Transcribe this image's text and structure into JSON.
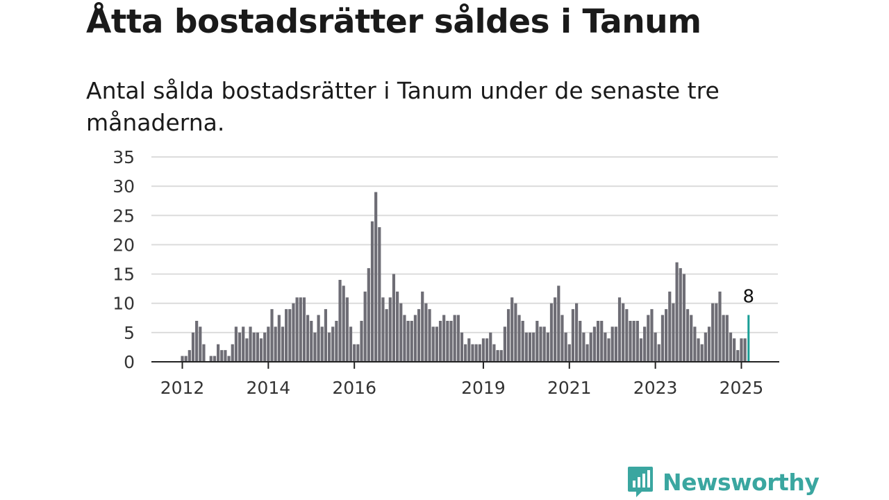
{
  "title": "Åtta bostadsrätter såldes i Tanum",
  "subtitle": "Antal sålda bostadsrätter i Tanum under de senaste tre månaderna.",
  "brand": {
    "name": "Newsworthy",
    "icon": "newsworthy-logo-icon"
  },
  "colors": {
    "bar": "#6e6d75",
    "highlight": "#1a9e96",
    "grid": "#dcdcdc",
    "axis": "#222222",
    "brand": "#3aa6a0"
  },
  "chart_data": {
    "type": "bar",
    "x_start": "2012-01",
    "x_end": "2025-02",
    "x_ticks": [
      "2012",
      "2014",
      "2016",
      "2019",
      "2021",
      "2023",
      "2025"
    ],
    "y_ticks": [
      "0",
      "5",
      "10",
      "15",
      "20",
      "25",
      "30",
      "35"
    ],
    "ylim": [
      0,
      35
    ],
    "grid": true,
    "values": [
      1,
      1,
      2,
      5,
      7,
      6,
      3,
      0,
      1,
      1,
      3,
      2,
      2,
      1,
      3,
      6,
      5,
      6,
      4,
      6,
      5,
      5,
      4,
      5,
      6,
      9,
      6,
      8,
      6,
      9,
      9,
      10,
      11,
      11,
      11,
      8,
      7,
      5,
      8,
      6,
      9,
      5,
      6,
      7,
      14,
      13,
      11,
      6,
      3,
      3,
      7,
      12,
      16,
      24,
      29,
      23,
      11,
      9,
      11,
      15,
      12,
      10,
      8,
      7,
      7,
      8,
      9,
      12,
      10,
      9,
      6,
      6,
      7,
      8,
      7,
      7,
      8,
      8,
      5,
      3,
      4,
      3,
      3,
      3,
      4,
      4,
      5,
      3,
      2,
      2,
      6,
      9,
      11,
      10,
      8,
      7,
      5,
      5,
      5,
      7,
      6,
      6,
      5,
      10,
      11,
      13,
      8,
      5,
      3,
      9,
      10,
      7,
      5,
      3,
      5,
      6,
      7,
      7,
      5,
      4,
      6,
      6,
      11,
      10,
      9,
      7,
      7,
      7,
      4,
      6,
      8,
      9,
      5,
      3,
      8,
      9,
      12,
      10,
      17,
      16,
      15,
      9,
      8,
      6,
      4,
      3,
      5,
      6,
      10,
      10,
      12,
      8,
      8,
      5,
      4,
      2,
      4,
      4,
      8
    ],
    "highlight_label": "8"
  }
}
